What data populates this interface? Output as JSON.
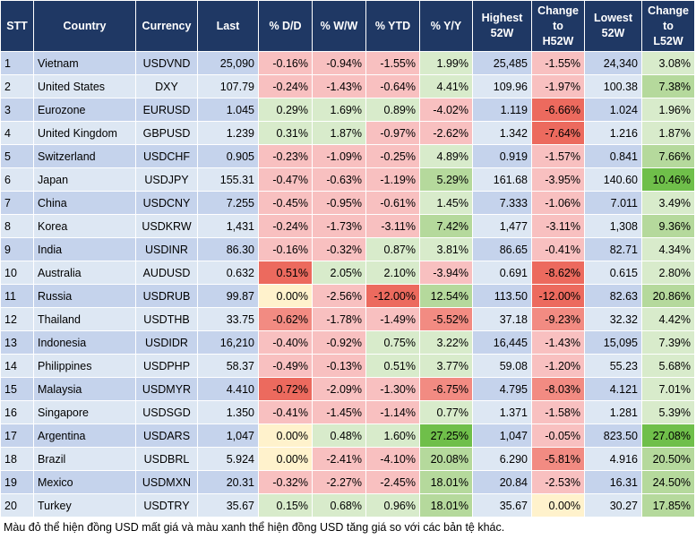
{
  "table": {
    "headers": [
      "STT",
      "Country",
      "Currency",
      "Last",
      "% D/D",
      "% W/W",
      "% YTD",
      "% Y/Y",
      "Highest\n52W",
      "Change\nto\nH52W",
      "Lowest\n52W",
      "Change\nto\nL52W"
    ],
    "rows": [
      [
        "1",
        "Vietnam",
        "USDVND",
        "25,090",
        "-0.16%",
        "-0.94%",
        "-1.55%",
        "1.99%",
        "25,485",
        "-1.55%",
        "24,340",
        "3.08%"
      ],
      [
        "2",
        "United States",
        "DXY",
        "107.79",
        "-0.24%",
        "-1.43%",
        "-0.64%",
        "4.41%",
        "109.96",
        "-1.97%",
        "100.38",
        "7.38%"
      ],
      [
        "3",
        "Eurozone",
        "EURUSD",
        "1.045",
        "0.29%",
        "1.69%",
        "0.89%",
        "-4.02%",
        "1.119",
        "-6.66%",
        "1.024",
        "1.96%"
      ],
      [
        "4",
        "United Kingdom",
        "GBPUSD",
        "1.239",
        "0.31%",
        "1.87%",
        "-0.97%",
        "-2.62%",
        "1.342",
        "-7.64%",
        "1.216",
        "1.87%"
      ],
      [
        "5",
        "Switzerland",
        "USDCHF",
        "0.905",
        "-0.23%",
        "-1.09%",
        "-0.25%",
        "4.89%",
        "0.919",
        "-1.57%",
        "0.841",
        "7.66%"
      ],
      [
        "6",
        "Japan",
        "USDJPY",
        "155.31",
        "-0.47%",
        "-0.63%",
        "-1.19%",
        "5.29%",
        "161.68",
        "-3.95%",
        "140.60",
        "10.46%"
      ],
      [
        "7",
        "China",
        "USDCNY",
        "7.255",
        "-0.45%",
        "-0.95%",
        "-0.61%",
        "1.45%",
        "7.333",
        "-1.06%",
        "7.011",
        "3.49%"
      ],
      [
        "8",
        "Korea",
        "USDKRW",
        "1,431",
        "-0.24%",
        "-1.73%",
        "-3.11%",
        "7.42%",
        "1,477",
        "-3.11%",
        "1,308",
        "9.36%"
      ],
      [
        "9",
        "India",
        "USDINR",
        "86.30",
        "-0.16%",
        "-0.32%",
        "0.87%",
        "3.81%",
        "86.65",
        "-0.41%",
        "82.71",
        "4.34%"
      ],
      [
        "10",
        "Australia",
        "AUDUSD",
        "0.632",
        "0.51%",
        "2.05%",
        "2.10%",
        "-3.94%",
        "0.691",
        "-8.62%",
        "0.615",
        "2.80%"
      ],
      [
        "11",
        "Russia",
        "USDRUB",
        "99.87",
        "0.00%",
        "-2.56%",
        "-12.00%",
        "12.54%",
        "113.50",
        "-12.00%",
        "82.63",
        "20.86%"
      ],
      [
        "12",
        "Thailand",
        "USDTHB",
        "33.75",
        "-0.62%",
        "-1.78%",
        "-1.49%",
        "-5.52%",
        "37.18",
        "-9.23%",
        "32.32",
        "4.42%"
      ],
      [
        "13",
        "Indonesia",
        "USDIDR",
        "16,210",
        "-0.40%",
        "-0.92%",
        "0.75%",
        "3.22%",
        "16,445",
        "-1.43%",
        "15,095",
        "7.39%"
      ],
      [
        "14",
        "Philippines",
        "USDPHP",
        "58.37",
        "-0.49%",
        "-0.13%",
        "0.51%",
        "3.77%",
        "59.08",
        "-1.20%",
        "55.23",
        "5.68%"
      ],
      [
        "15",
        "Malaysia",
        "USDMYR",
        "4.410",
        "-0.72%",
        "-2.09%",
        "-1.30%",
        "-6.75%",
        "4.795",
        "-8.03%",
        "4.121",
        "7.01%"
      ],
      [
        "16",
        "Singapore",
        "USDSGD",
        "1.350",
        "-0.41%",
        "-1.45%",
        "-1.14%",
        "0.77%",
        "1.371",
        "-1.58%",
        "1.281",
        "5.39%"
      ],
      [
        "17",
        "Argentina",
        "USDARS",
        "1,047",
        "0.00%",
        "0.48%",
        "1.60%",
        "27.25%",
        "1,047",
        "-0.05%",
        "823.50",
        "27.08%"
      ],
      [
        "18",
        "Brazil",
        "USDBRL",
        "5.924",
        "0.00%",
        "-2.41%",
        "-4.10%",
        "20.08%",
        "6.290",
        "-5.81%",
        "4.916",
        "20.50%"
      ],
      [
        "19",
        "Mexico",
        "USDMXN",
        "20.31",
        "-0.32%",
        "-2.27%",
        "-2.45%",
        "18.01%",
        "20.84",
        "-2.53%",
        "16.31",
        "24.50%"
      ],
      [
        "20",
        "Turkey",
        "USDTRY",
        "35.67",
        "0.15%",
        "0.68%",
        "0.96%",
        "18.01%",
        "35.67",
        "0.00%",
        "30.27",
        "17.85%"
      ]
    ]
  },
  "footnote": "Màu đỏ thể hiện đồng USD mất giá và màu xanh thể hiện đồng USD tăng giá so với các bản tệ khác."
}
